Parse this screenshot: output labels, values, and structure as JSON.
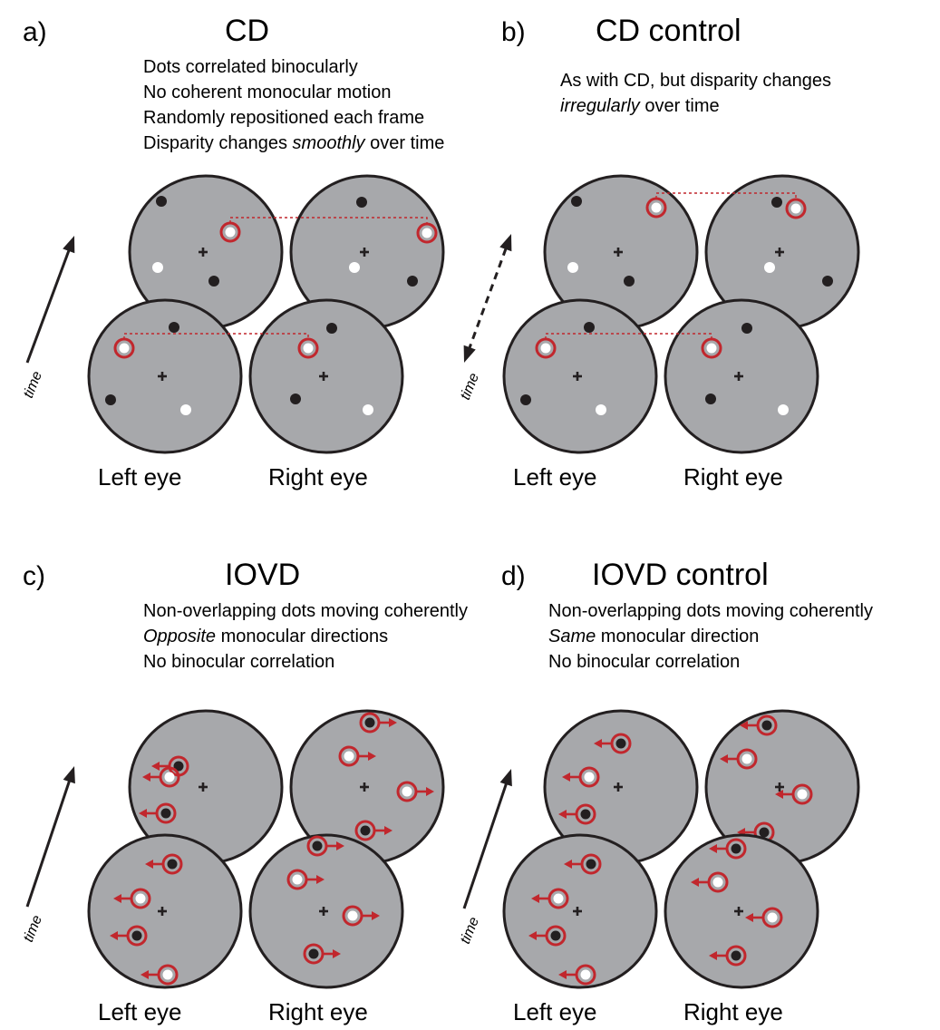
{
  "panels": [
    {
      "letter": "a)",
      "title": "CD",
      "lines": [
        [
          "Dots correlated binocularly"
        ],
        [
          "No coherent monocular motion"
        ],
        [
          "Randomly repositioned each frame"
        ],
        [
          "Disparity changes ",
          {
            "i": "smoothly"
          },
          " over time"
        ]
      ],
      "left_label": "Left eye",
      "right_label": "Right eye",
      "time_label": "time",
      "time_arrow": "single"
    },
    {
      "letter": "b)",
      "title": "CD control",
      "lines": [
        [
          "As with CD, but disparity changes"
        ],
        [
          {
            "i": "irregularly"
          },
          " over time"
        ]
      ],
      "left_label": "Left eye",
      "right_label": "Right eye",
      "time_label": "time",
      "time_arrow": "double-dashed"
    },
    {
      "letter": "c)",
      "title": "IOVD",
      "lines": [
        [
          "Non-overlapping dots moving coherently"
        ],
        [
          {
            "i": "Opposite"
          },
          " monocular directions"
        ],
        [
          "No binocular correlation"
        ]
      ],
      "left_label": "Left eye",
      "right_label": "Right eye",
      "time_label": "time",
      "time_arrow": "single"
    },
    {
      "letter": "d)",
      "title": "IOVD control",
      "lines": [
        [
          "Non-overlapping dots moving coherently"
        ],
        [
          {
            "i": "Same"
          },
          " monocular direction"
        ],
        [
          "No binocular correlation"
        ]
      ],
      "left_label": "Left eye",
      "right_label": "Right eye",
      "time_label": "time",
      "time_arrow": "single"
    }
  ],
  "colors": {
    "disc": "#a7a8ab",
    "outline": "#231f20",
    "highlight_ring": "#c1272d",
    "white_dot": "#ffffff",
    "black_dot": "#231f20"
  }
}
